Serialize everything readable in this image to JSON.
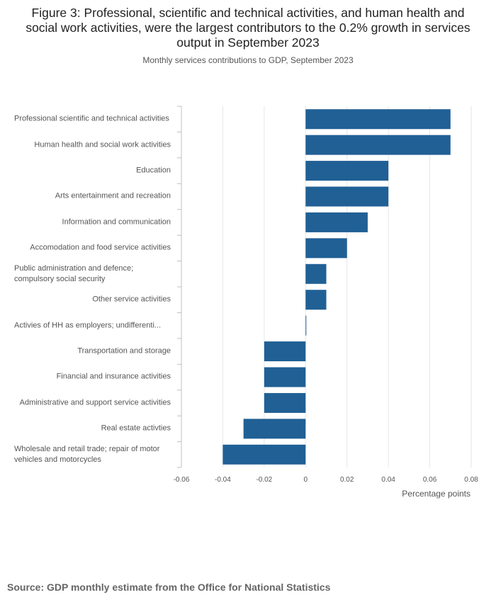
{
  "title": "Figure 3: Professional, scientific and technical activities, and human health and social work activities, were the largest contributors to the 0.2% growth in services output in September 2023",
  "subtitle": "Monthly services contributions to GDP, September 2023",
  "source": "Source: GDP monthly estimate from the Office for National Statistics",
  "colors": {
    "bar": "#206095",
    "grid": "#e6e6e6",
    "axis": "#c0c0c0"
  },
  "chart_data": {
    "type": "bar",
    "orientation": "horizontal",
    "categories": [
      "Professional scientific and technical activities",
      "Human health and social work activities",
      "Education",
      "Arts entertainment and recreation",
      "Information and communication",
      "Accomodation and food service activities",
      "Public administration and defence; compulsory social security",
      "Other service activities",
      "Activies of HH as employers; undifferenti...",
      "Transportation and storage",
      "Financial and insurance activities",
      "Administrative and support service activities",
      "Real estate activties",
      "Wholesale and retail trade; repair of motor vehicles and motorcycles"
    ],
    "values": [
      0.07,
      0.07,
      0.04,
      0.04,
      0.03,
      0.02,
      0.01,
      0.01,
      0,
      -0.02,
      -0.02,
      -0.02,
      -0.03,
      -0.04
    ],
    "xlabel": "Percentage points",
    "ylabel": "",
    "xlim": [
      -0.06,
      0.08
    ],
    "xticks": [
      -0.06,
      -0.04,
      -0.02,
      0,
      0.02,
      0.04,
      0.06,
      0.08
    ],
    "xtick_labels": [
      "-0.06",
      "-0.04",
      "-0.02",
      "0",
      "0.02",
      "0.04",
      "0.06",
      "0.08"
    ],
    "grid": true,
    "legend": "none"
  }
}
